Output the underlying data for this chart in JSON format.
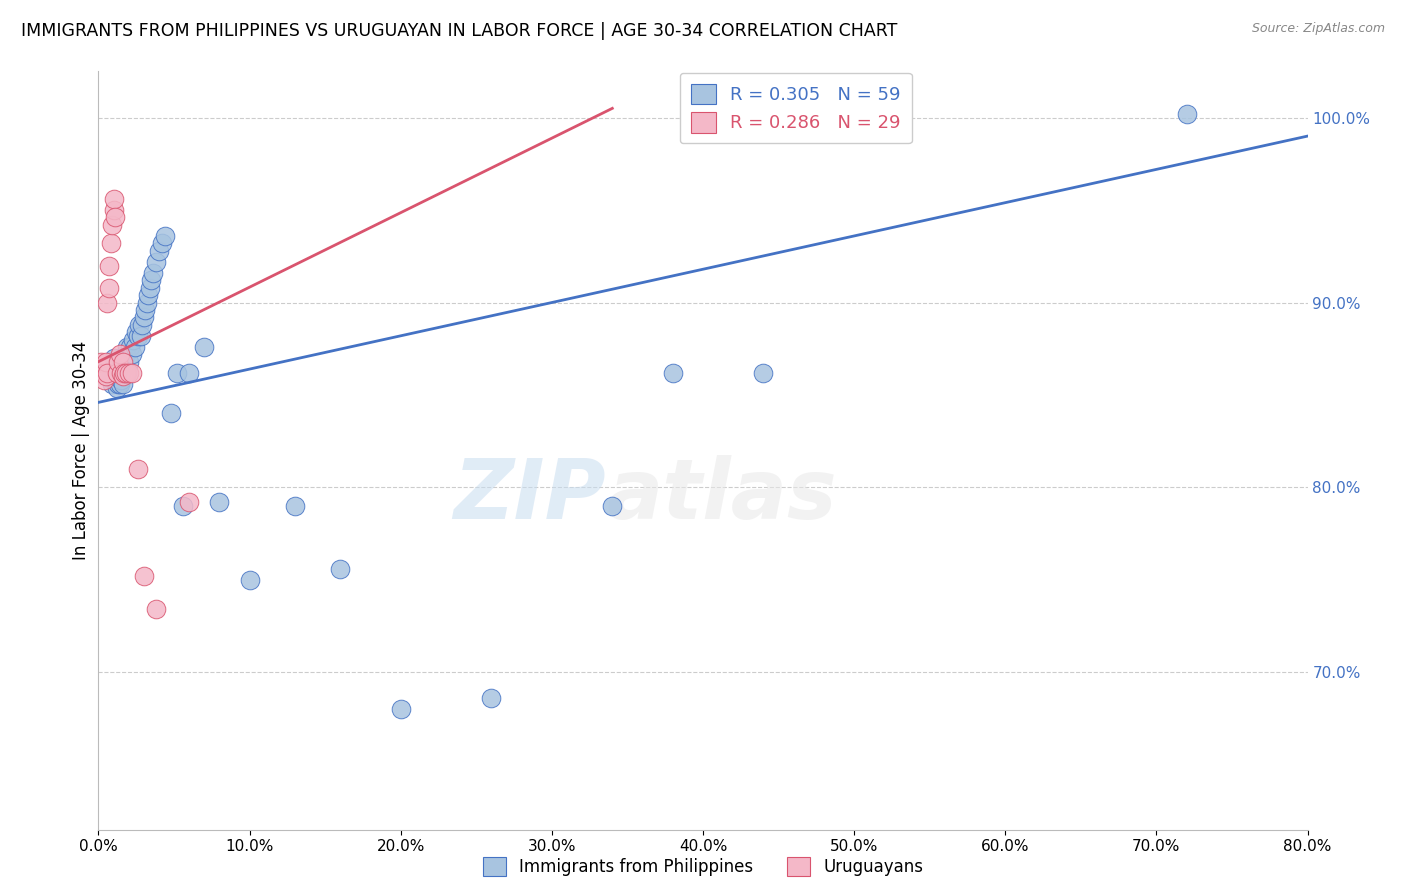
{
  "title": "IMMIGRANTS FROM PHILIPPINES VS URUGUAYAN IN LABOR FORCE | AGE 30-34 CORRELATION CHART",
  "source": "Source: ZipAtlas.com",
  "ylabel": "In Labor Force | Age 30-34",
  "xlim": [
    0.0,
    0.8
  ],
  "ylim": [
    0.615,
    1.025
  ],
  "legend_blue_label": "R = 0.305   N = 59",
  "legend_pink_label": "R = 0.286   N = 29",
  "blue_color": "#a8c4e0",
  "blue_line_color": "#4472c4",
  "pink_color": "#f4b8c8",
  "pink_line_color": "#d9546e",
  "right_tick_color": "#4472c4",
  "watermark_zip": "ZIP",
  "watermark_atlas": "atlas",
  "blue_x": [
    0.008,
    0.009,
    0.009,
    0.01,
    0.01,
    0.01,
    0.011,
    0.011,
    0.012,
    0.012,
    0.013,
    0.013,
    0.014,
    0.014,
    0.015,
    0.015,
    0.015,
    0.016,
    0.016,
    0.017,
    0.018,
    0.019,
    0.019,
    0.02,
    0.021,
    0.022,
    0.023,
    0.024,
    0.025,
    0.026,
    0.027,
    0.028,
    0.029,
    0.03,
    0.031,
    0.032,
    0.033,
    0.034,
    0.035,
    0.036,
    0.038,
    0.04,
    0.042,
    0.044,
    0.048,
    0.052,
    0.056,
    0.06,
    0.07,
    0.08,
    0.1,
    0.13,
    0.16,
    0.2,
    0.26,
    0.34,
    0.38,
    0.44,
    0.72
  ],
  "blue_y": [
    0.862,
    0.858,
    0.856,
    0.858,
    0.862,
    0.87,
    0.858,
    0.864,
    0.854,
    0.862,
    0.856,
    0.862,
    0.856,
    0.864,
    0.858,
    0.862,
    0.868,
    0.856,
    0.864,
    0.862,
    0.872,
    0.862,
    0.876,
    0.868,
    0.876,
    0.872,
    0.88,
    0.876,
    0.884,
    0.882,
    0.888,
    0.882,
    0.888,
    0.892,
    0.896,
    0.9,
    0.904,
    0.908,
    0.912,
    0.916,
    0.922,
    0.928,
    0.932,
    0.936,
    0.84,
    0.862,
    0.79,
    0.862,
    0.876,
    0.792,
    0.75,
    0.79,
    0.756,
    0.68,
    0.686,
    0.79,
    0.862,
    0.862,
    1.002
  ],
  "pink_x": [
    0.001,
    0.002,
    0.003,
    0.004,
    0.005,
    0.005,
    0.006,
    0.006,
    0.007,
    0.007,
    0.008,
    0.009,
    0.01,
    0.01,
    0.011,
    0.012,
    0.013,
    0.014,
    0.015,
    0.016,
    0.016,
    0.017,
    0.018,
    0.02,
    0.022,
    0.026,
    0.03,
    0.038,
    0.06
  ],
  "pink_y": [
    0.862,
    0.868,
    0.862,
    0.858,
    0.86,
    0.868,
    0.862,
    0.9,
    0.908,
    0.92,
    0.932,
    0.942,
    0.95,
    0.956,
    0.946,
    0.862,
    0.868,
    0.872,
    0.862,
    0.86,
    0.868,
    0.862,
    0.862,
    0.862,
    0.862,
    0.81,
    0.752,
    0.734,
    0.792
  ],
  "blue_line_x0": 0.0,
  "blue_line_y0": 0.846,
  "blue_line_x1": 0.8,
  "blue_line_y1": 0.99,
  "pink_line_x0": 0.0,
  "pink_line_y0": 0.868,
  "pink_line_x1": 0.34,
  "pink_line_y1": 1.005
}
